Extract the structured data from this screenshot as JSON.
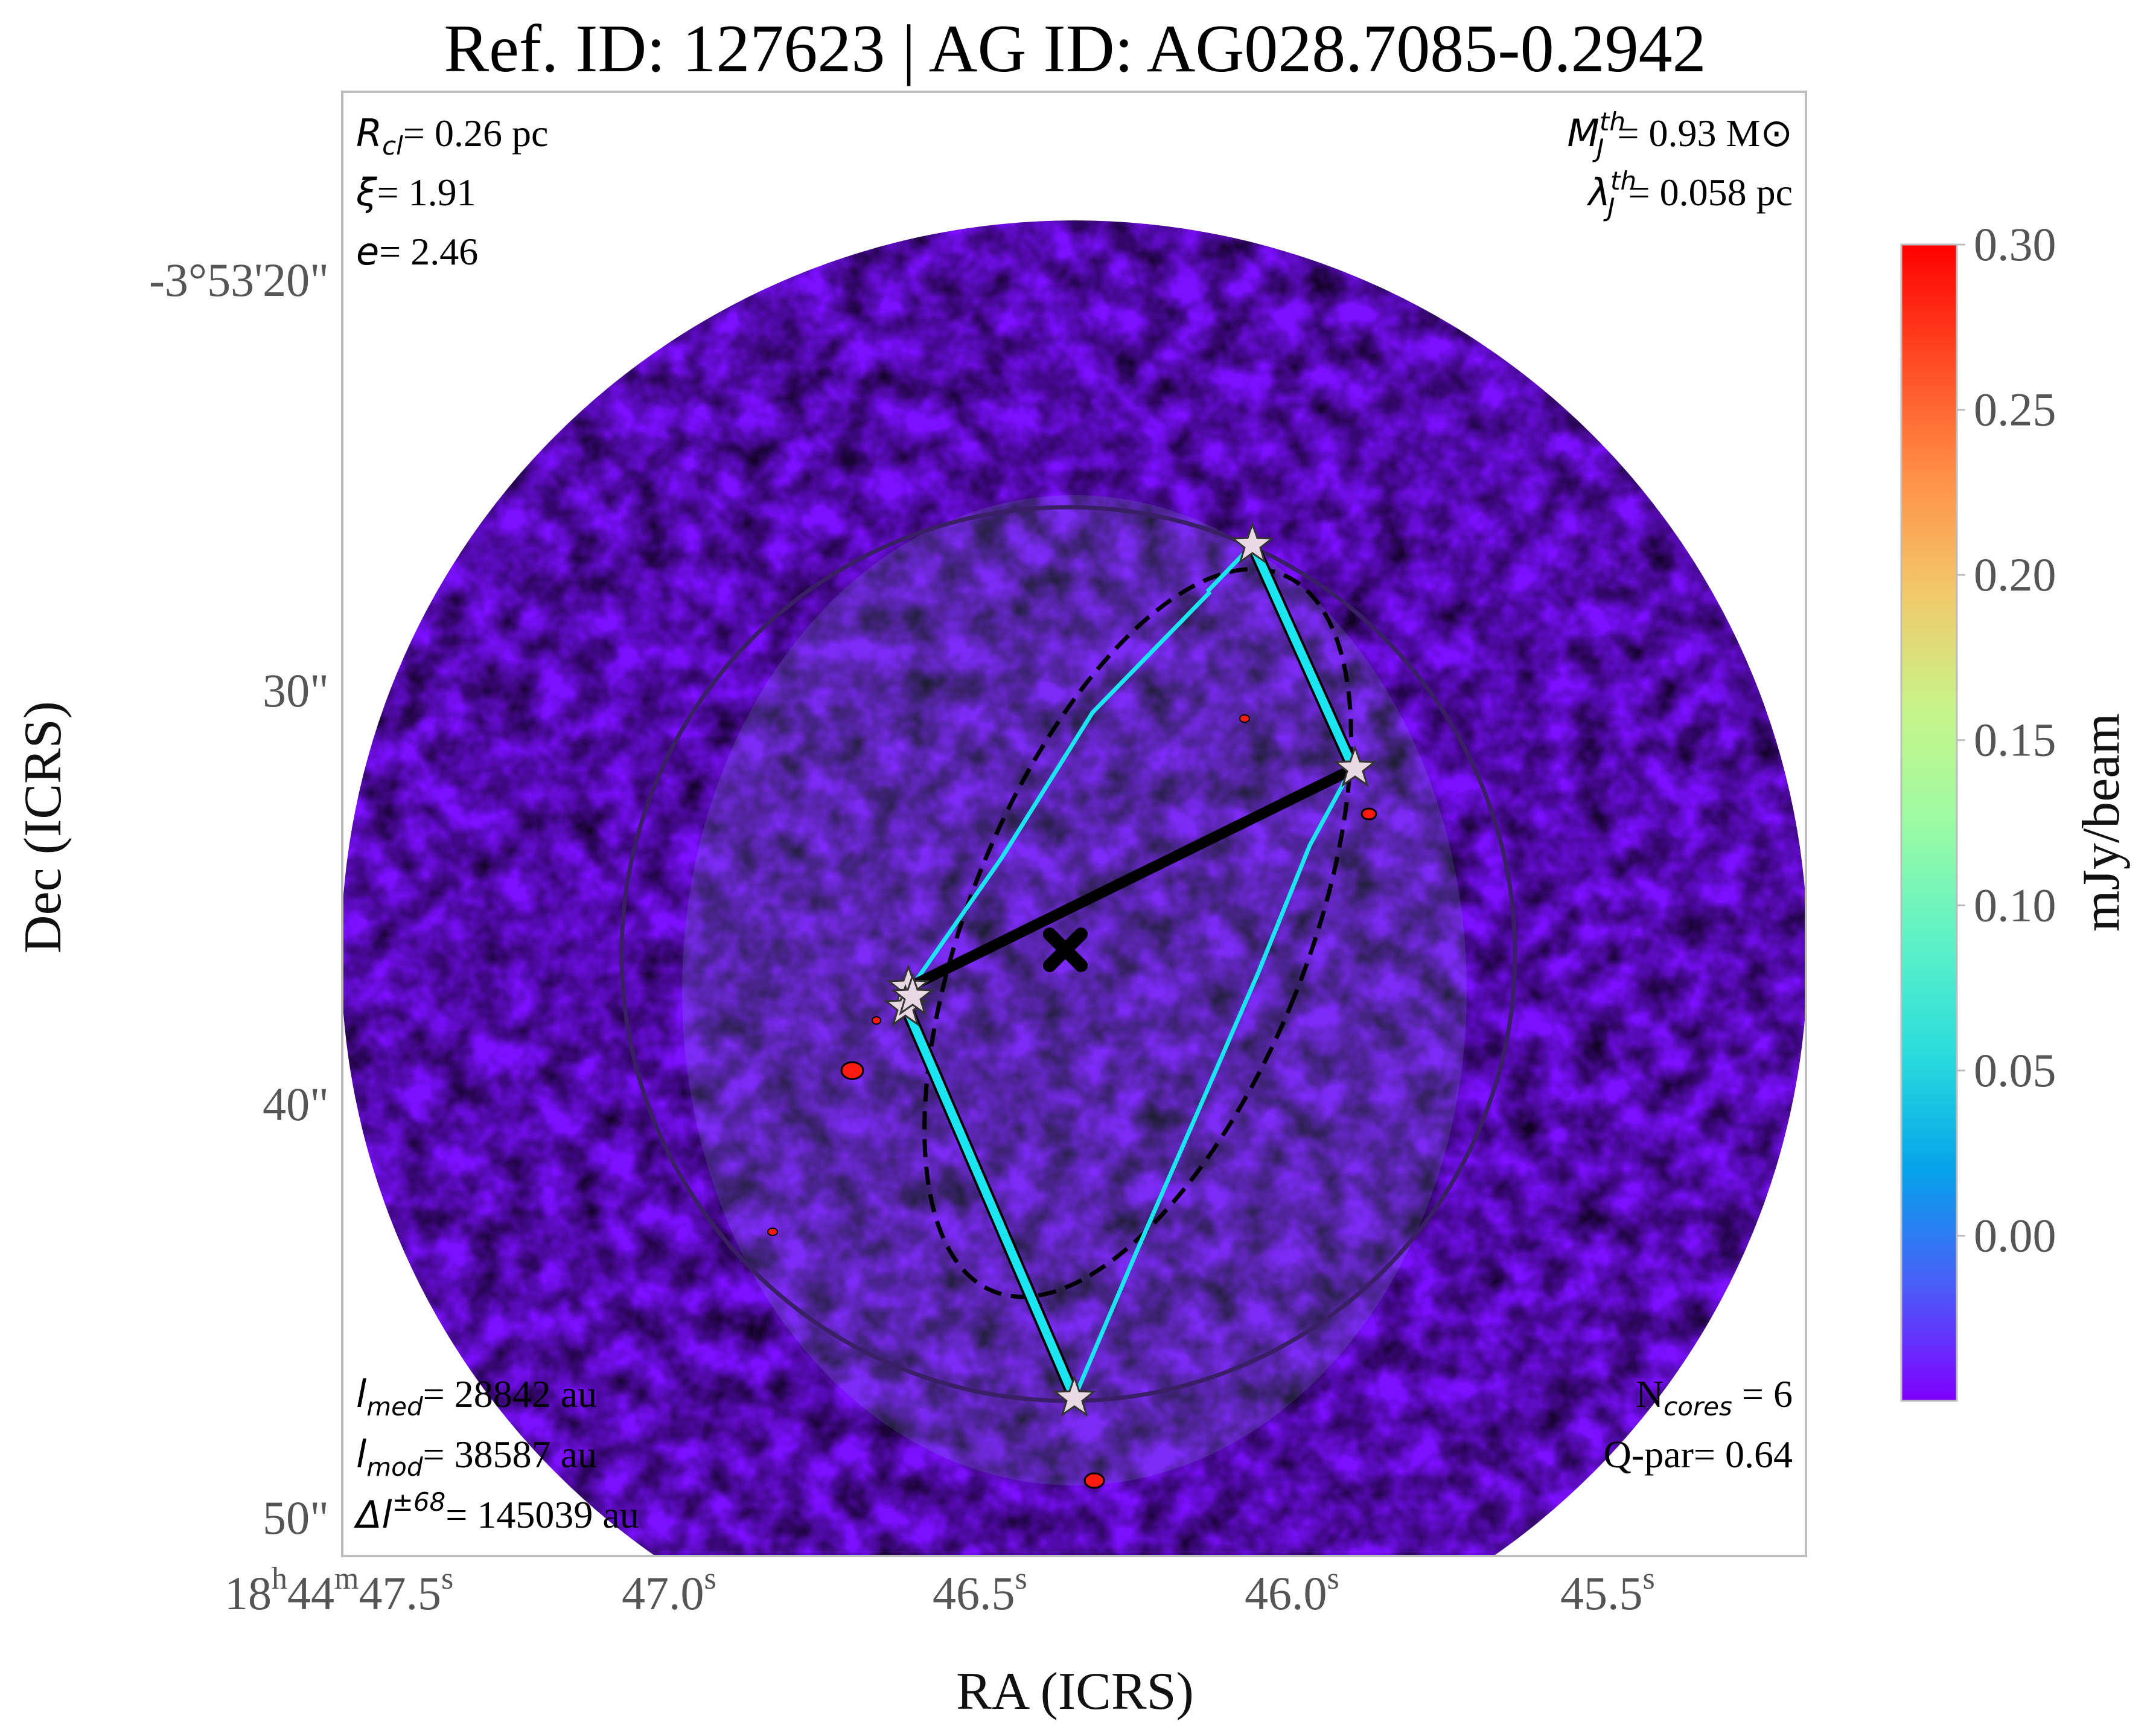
{
  "chart_data": {
    "type": "heatmap",
    "title": "Ref. ID: 127623 | AG ID: AG028.7085-0.2942",
    "xlabel": "RA (ICRS)",
    "ylabel": "Dec (ICRS)",
    "x_ticks": [
      {
        "pre": "18",
        "sup1": "h",
        "mid": "44",
        "sup2": "m",
        "main": "47.5",
        "sup3": "s"
      },
      {
        "pre": "",
        "sup1": "",
        "mid": "",
        "sup2": "",
        "main": "47.0",
        "sup3": "s"
      },
      {
        "pre": "",
        "sup1": "",
        "mid": "",
        "sup2": "",
        "main": "46.5",
        "sup3": "s"
      },
      {
        "pre": "",
        "sup1": "",
        "mid": "",
        "sup2": "",
        "main": "46.0",
        "sup3": "s"
      },
      {
        "pre": "",
        "sup1": "",
        "mid": "",
        "sup2": "",
        "main": "45.5",
        "sup3": "s"
      }
    ],
    "y_ticks": [
      "-3°53'20\"",
      "30\"",
      "40\"",
      "50\""
    ],
    "colorbar": {
      "label": "mJy/beam",
      "min": -0.05,
      "max": 0.3,
      "ticks": [
        "0.30",
        "0.25",
        "0.20",
        "0.15",
        "0.10",
        "0.05",
        "0.00"
      ],
      "tick_values": [
        0.3,
        0.25,
        0.2,
        0.15,
        0.1,
        0.05,
        0.0
      ],
      "colormap": "rainbow"
    },
    "annotations": {
      "top_left": [
        {
          "sym": "R",
          "sub": "cl",
          "text": "= 0.26 pc"
        },
        {
          "sym": "ξ",
          "sub": "",
          "text": "= 1.91"
        },
        {
          "sym": "e",
          "sub": "",
          "text": "= 2.46"
        }
      ],
      "top_right": [
        {
          "sym": "M",
          "sup": "th",
          "sub": "J",
          "text": "= 0.93 M⊙"
        },
        {
          "sym": "λ",
          "sup": "th",
          "sub": "J",
          "text": "= 0.058 pc"
        }
      ],
      "bottom_left": [
        {
          "sym": "l",
          "sub": "med",
          "sup": "",
          "text": "= 28842 au"
        },
        {
          "sym": "l",
          "sub": "mod",
          "sup": "",
          "text": "= 38587 au"
        },
        {
          "sym": "Δl",
          "sub": "",
          "sup": "±68",
          "text": "= 145039 au"
        }
      ],
      "bottom_right": [
        {
          "pre": "N",
          "sub": "cores",
          "text": " = 6"
        },
        {
          "pre": "Q-par",
          "sub": "",
          "text": "= 0.64"
        }
      ]
    },
    "overlays": {
      "cores_count": 6,
      "center_marker": "X",
      "cluster_circle": true,
      "fitted_ellipse": "dashed",
      "mst_edges": "cyan",
      "longest_axis_line": "black"
    }
  },
  "colors": {
    "rainbow_stops": [
      "#8000ff",
      "#4a5ef8",
      "#05a3eb",
      "#2adcdc",
      "#5ef2c6",
      "#9cfba4",
      "#c8f489",
      "#f2c86a",
      "#ff8f47",
      "#ff4a24",
      "#ff0000"
    ],
    "circle": "#3b1f66",
    "mst": "#19e6f0",
    "star": "#e8d8e4"
  }
}
